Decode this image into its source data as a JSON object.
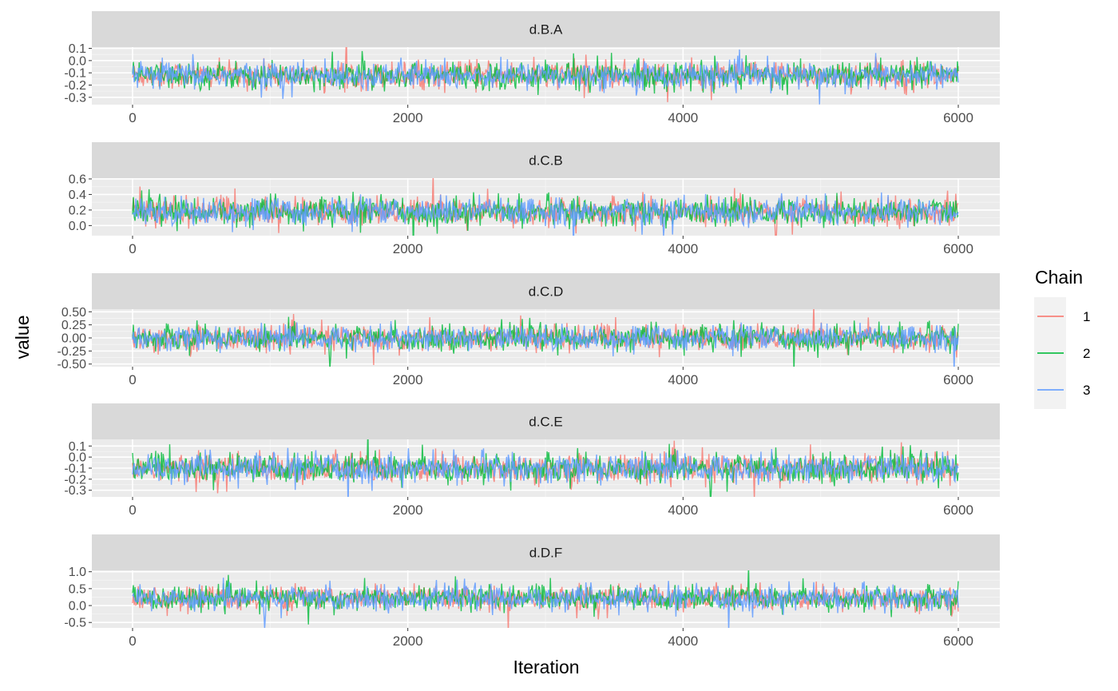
{
  "chart_data": {
    "type": "line",
    "xlabel": "Iteration",
    "ylabel": "value",
    "xlim": [
      0,
      6000
    ],
    "x_ticks": [
      "0",
      "2000",
      "4000",
      "6000"
    ],
    "x_tick_values": [
      0,
      2000,
      4000,
      6000
    ],
    "grid": true,
    "legend": {
      "title": "Chain",
      "position": "right",
      "entries": [
        "1",
        "2",
        "3"
      ]
    },
    "series_colors": {
      "1": "#F8766D",
      "2": "#00BA38",
      "3": "#619CFF"
    },
    "panels": [
      {
        "label": "d.B.A",
        "ylim": [
          -0.36,
          0.11
        ],
        "y_ticks": [
          0.1,
          0.0,
          -0.1,
          -0.2,
          -0.3
        ],
        "y_tick_labels": [
          "0.1",
          "0.0",
          "-0.1",
          "-0.2",
          "-0.3"
        ],
        "series": [
          {
            "name": "1",
            "mean": -0.12,
            "sd": 0.055
          },
          {
            "name": "2",
            "mean": -0.12,
            "sd": 0.055
          },
          {
            "name": "3",
            "mean": -0.12,
            "sd": 0.055
          }
        ]
      },
      {
        "label": "d.C.B",
        "ylim": [
          -0.13,
          0.61
        ],
        "y_ticks": [
          0.6,
          0.4,
          0.2,
          0.0
        ],
        "y_tick_labels": [
          "0.6",
          "0.4",
          "0.2",
          "0.0"
        ],
        "series": [
          {
            "name": "1",
            "mean": 0.18,
            "sd": 0.09
          },
          {
            "name": "2",
            "mean": 0.18,
            "sd": 0.09
          },
          {
            "name": "3",
            "mean": 0.18,
            "sd": 0.09
          }
        ]
      },
      {
        "label": "d.C.D",
        "ylim": [
          -0.55,
          0.55
        ],
        "y_ticks": [
          0.5,
          0.25,
          0.0,
          -0.25,
          -0.5
        ],
        "y_tick_labels": [
          "0.50",
          "0.25",
          "0.00",
          "-0.25",
          "-0.50"
        ],
        "series": [
          {
            "name": "1",
            "mean": 0.0,
            "sd": 0.12
          },
          {
            "name": "2",
            "mean": 0.0,
            "sd": 0.12
          },
          {
            "name": "3",
            "mean": 0.0,
            "sd": 0.12
          }
        ]
      },
      {
        "label": "d.C.E",
        "ylim": [
          -0.36,
          0.16
        ],
        "y_ticks": [
          0.1,
          0.0,
          -0.1,
          -0.2,
          -0.3
        ],
        "y_tick_labels": [
          "0.1",
          "0.0",
          "-0.1",
          "-0.2",
          "-0.3"
        ],
        "series": [
          {
            "name": "1",
            "mean": -0.1,
            "sd": 0.065
          },
          {
            "name": "2",
            "mean": -0.1,
            "sd": 0.065
          },
          {
            "name": "3",
            "mean": -0.1,
            "sd": 0.065
          }
        ]
      },
      {
        "label": "d.D.F",
        "ylim": [
          -0.66,
          1.04
        ],
        "y_ticks": [
          1.0,
          0.5,
          0.0,
          -0.5
        ],
        "y_tick_labels": [
          "1.0",
          "0.5",
          "0.0",
          "-0.5"
        ],
        "series": [
          {
            "name": "1",
            "mean": 0.22,
            "sd": 0.18
          },
          {
            "name": "2",
            "mean": 0.22,
            "sd": 0.18
          },
          {
            "name": "3",
            "mean": 0.22,
            "sd": 0.18
          }
        ]
      }
    ]
  }
}
